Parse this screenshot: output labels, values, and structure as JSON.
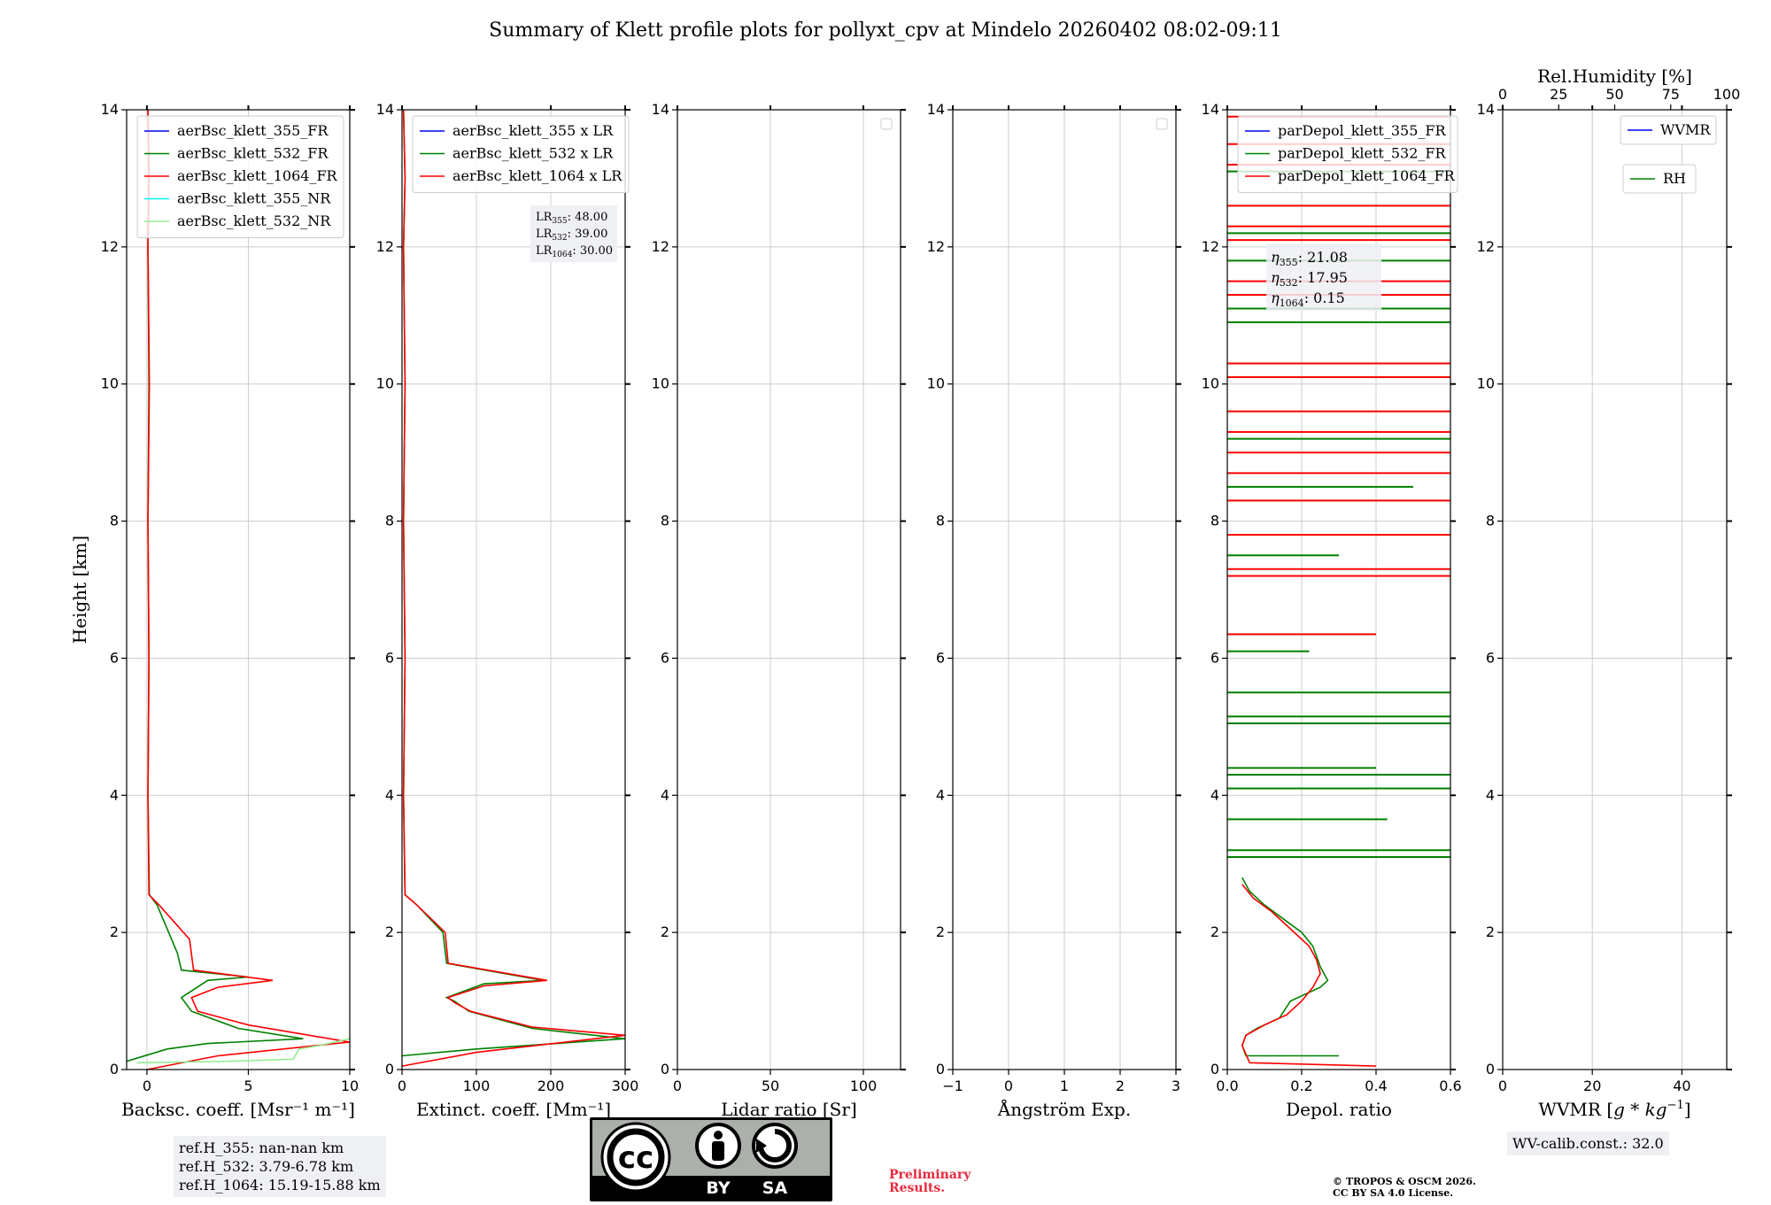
{
  "title": "Summary of Klett profile plots for pollyxt_cpv at Mindelo 20260402 08:02-09:11",
  "colors": {
    "b355": "#0000ff",
    "g532": "#008000",
    "r1064": "#ff0000",
    "c355nr": "#00ffff",
    "lg532nr": "#90ee90",
    "grid": "#cccccc"
  },
  "chart_data": [
    {
      "type": "line",
      "panel": "backscatter",
      "xlabel": "Backsc. coeff. [Msr⁻¹ m⁻¹]",
      "ylabel": "Height [km]",
      "xlim": [
        -1,
        10
      ],
      "ylim": [
        0,
        14
      ],
      "xticks": [
        "0",
        "5",
        "10"
      ],
      "xtick_values": [
        0,
        5,
        10
      ],
      "yticks": [
        "0",
        "2",
        "4",
        "6",
        "8",
        "10",
        "12",
        "14"
      ],
      "legend": [
        "aerBsc_klett_355_FR",
        "aerBsc_klett_532_FR",
        "aerBsc_klett_1064_FR",
        "aerBsc_klett_355_NR",
        "aerBsc_klett_532_NR"
      ],
      "series": [
        {
          "name": "aerBsc_klett_532_FR",
          "color": "g532",
          "x": [
            -1,
            1.0,
            3.0,
            7.7,
            4.5,
            2.2,
            1.7,
            3.0,
            5.0,
            1.7,
            1.5,
            0.5,
            0.12,
            0.05,
            0.1,
            0.05,
            0.1,
            0.05,
            0.1,
            0.05
          ],
          "y": [
            0.12,
            0.3,
            0.38,
            0.45,
            0.6,
            0.85,
            1.05,
            1.3,
            1.35,
            1.45,
            1.7,
            2.4,
            2.55,
            4,
            6,
            8,
            10,
            12,
            13,
            14
          ]
        },
        {
          "name": "aerBsc_klett_1064_FR",
          "color": "r1064",
          "x": [
            0.0,
            3.5,
            10.0,
            8.0,
            5.0,
            2.5,
            2.2,
            3.5,
            6.2,
            2.3,
            2.1,
            0.6,
            0.1,
            0.05,
            0.1,
            0.05,
            0.12,
            0.05,
            0.1,
            0.05
          ],
          "y": [
            0.0,
            0.2,
            0.4,
            0.5,
            0.65,
            0.85,
            1.05,
            1.2,
            1.3,
            1.45,
            1.9,
            2.4,
            2.55,
            4,
            6,
            8,
            10,
            12,
            13,
            14
          ]
        },
        {
          "name": "aerBsc_klett_532_NR",
          "color": "lg532nr",
          "x": [
            -0.5,
            4.0,
            7.2,
            7.5,
            8.5,
            10.0
          ],
          "y": [
            0.1,
            0.12,
            0.15,
            0.3,
            0.35,
            0.45
          ]
        }
      ]
    },
    {
      "type": "line",
      "panel": "extinction",
      "xlabel": "Extinct. coeff. [Mm⁻¹]",
      "xlim": [
        0,
        300
      ],
      "ylim": [
        0,
        14
      ],
      "xticks": [
        "0",
        "100",
        "200",
        "300"
      ],
      "xtick_values": [
        0,
        100,
        200,
        300
      ],
      "yticks": [
        "0",
        "2",
        "4",
        "6",
        "8",
        "10",
        "12",
        "14"
      ],
      "legend": [
        "aerBsc_klett_355 x LR",
        "aerBsc_klett_532 x LR",
        "aerBsc_klett_1064 x LR"
      ],
      "lidar_ratio_lines": [
        "LR$_{355}$: 48.00",
        "LR$_{532}$: 39.00",
        "LR$_{1064}$: 30.00"
      ],
      "lidar_ratio_labels": [
        {
          "base": "LR",
          "sub": "355",
          "value": ": 48.00"
        },
        {
          "base": "LR",
          "sub": "532",
          "value": ": 39.00"
        },
        {
          "base": "LR",
          "sub": "1064",
          "value": ": 30.00"
        }
      ],
      "series": [
        {
          "name": "aerBsc_klett_532 x LR",
          "color": "g532",
          "x": [
            0,
            100,
            300,
            175,
            90,
            70,
            60,
            110,
            190,
            60,
            55,
            20,
            4,
            2,
            4,
            2,
            4,
            2,
            4,
            2
          ],
          "y": [
            0.2,
            0.3,
            0.45,
            0.6,
            0.85,
            1.0,
            1.05,
            1.25,
            1.3,
            1.55,
            2.0,
            2.4,
            2.55,
            4,
            6,
            8,
            10,
            12,
            13,
            14
          ]
        },
        {
          "name": "aerBsc_klett_1064 x LR",
          "color": "r1064",
          "x": [
            0,
            100,
            300,
            175,
            92,
            70,
            62,
            110,
            195,
            62,
            58,
            20,
            4,
            2,
            4,
            2,
            4,
            2,
            4,
            2
          ],
          "y": [
            0.05,
            0.25,
            0.5,
            0.62,
            0.85,
            0.98,
            1.05,
            1.22,
            1.3,
            1.55,
            2.0,
            2.4,
            2.55,
            4,
            6,
            8,
            10,
            12,
            13,
            14
          ]
        }
      ]
    },
    {
      "type": "line",
      "panel": "lidar-ratio",
      "xlabel": "Lidar ratio [Sr]",
      "xlim": [
        0,
        120
      ],
      "ylim": [
        0,
        14
      ],
      "xticks": [
        "0",
        "50",
        "100"
      ],
      "xtick_values": [
        0,
        50,
        100
      ],
      "yticks": [
        "0",
        "2",
        "4",
        "6",
        "8",
        "10",
        "12",
        "14"
      ],
      "series": []
    },
    {
      "type": "line",
      "panel": "angstrom",
      "xlabel": "Ångström Exp.",
      "xlim": [
        -1,
        3
      ],
      "ylim": [
        0,
        14
      ],
      "xticks": [
        "−1",
        "0",
        "1",
        "2",
        "3"
      ],
      "xtick_values": [
        -1,
        0,
        1,
        2,
        3
      ],
      "yticks": [
        "0",
        "2",
        "4",
        "6",
        "8",
        "10",
        "12",
        "14"
      ],
      "series": []
    },
    {
      "type": "line",
      "panel": "depol",
      "xlabel": "Depol. ratio",
      "xlim": [
        0,
        0.6
      ],
      "ylim": [
        0,
        14
      ],
      "xticks": [
        "0.0",
        "0.2",
        "0.4",
        "0.6"
      ],
      "xtick_values": [
        0,
        0.2,
        0.4,
        0.6
      ],
      "yticks": [
        "0",
        "2",
        "4",
        "6",
        "8",
        "10",
        "12",
        "14"
      ],
      "legend": [
        "parDepol_klett_355_FR",
        "parDepol_klett_532_FR",
        "parDepol_klett_1064_FR"
      ],
      "eta_lines": [
        "$\\eta_{355}$: 21.08",
        "$\\eta_{532}$: 17.95",
        "$\\eta_{1064}$: 0.15"
      ],
      "eta_labels": [
        {
          "base": "η",
          "sub": "355",
          "value": ": 21.08"
        },
        {
          "base": "η",
          "sub": "532",
          "value": ": 17.95"
        },
        {
          "base": "η",
          "sub": "1064",
          "value": ": 0.15"
        }
      ],
      "series": [
        {
          "name": "parDepol_klett_532_FR",
          "color": "g532",
          "x": [
            0.3,
            0.05,
            0.04,
            0.05,
            0.08,
            0.14,
            0.17,
            0.21,
            0.25,
            0.27,
            0.25,
            0.23,
            0.2,
            0.15,
            0.1,
            0.06,
            0.04
          ],
          "y": [
            0.2,
            0.2,
            0.35,
            0.5,
            0.6,
            0.75,
            1.0,
            1.1,
            1.2,
            1.3,
            1.5,
            1.8,
            2.0,
            2.2,
            2.4,
            2.6,
            2.8
          ]
        },
        {
          "name": "parDepol_klett_1064_FR",
          "color": "r1064",
          "x": [
            0.4,
            0.06,
            0.04,
            0.05,
            0.1,
            0.16,
            0.2,
            0.23,
            0.25,
            0.24,
            0.22,
            0.18,
            0.12,
            0.07,
            0.04
          ],
          "y": [
            0.05,
            0.1,
            0.35,
            0.5,
            0.65,
            0.8,
            1.0,
            1.2,
            1.4,
            1.6,
            1.8,
            2.0,
            2.3,
            2.5,
            2.7
          ]
        }
      ],
      "noise_spikes_532": [
        [
          0.6,
          3.1
        ],
        [
          0.6,
          3.2
        ],
        [
          0.43,
          3.65
        ],
        [
          0.6,
          4.1
        ],
        [
          0.6,
          4.3
        ],
        [
          0.4,
          4.4
        ],
        [
          0.6,
          5.05
        ],
        [
          0.6,
          5.15
        ],
        [
          0.6,
          5.5
        ],
        [
          0.22,
          6.1
        ],
        [
          0.3,
          7.5
        ],
        [
          0.5,
          8.5
        ],
        [
          0.6,
          9.2
        ],
        [
          0.6,
          10.9
        ],
        [
          0.6,
          11.1
        ],
        [
          0.6,
          11.8
        ],
        [
          0.6,
          12.2
        ],
        [
          0.6,
          13.1
        ]
      ],
      "noise_spikes_1064": [
        [
          0.4,
          6.35
        ],
        [
          0.6,
          7.2
        ],
        [
          0.6,
          7.3
        ],
        [
          0.6,
          7.8
        ],
        [
          0.6,
          8.3
        ],
        [
          0.6,
          8.7
        ],
        [
          0.6,
          9.0
        ],
        [
          0.6,
          9.3
        ],
        [
          0.6,
          9.6
        ],
        [
          0.6,
          10.1
        ],
        [
          0.6,
          10.3
        ],
        [
          0.6,
          11.3
        ],
        [
          0.6,
          11.5
        ],
        [
          0.6,
          12.1
        ],
        [
          0.6,
          12.3
        ],
        [
          0.6,
          12.6
        ],
        [
          0.6,
          13.2
        ],
        [
          0.6,
          13.5
        ],
        [
          0.6,
          13.9
        ]
      ]
    },
    {
      "type": "line",
      "panel": "wvmr",
      "xlabel": "WVMR [g*kg⁻¹]",
      "xlabel_parts": {
        "main": "WVMR [",
        "italic": "g * kg",
        "sup": "−1",
        "end": "]"
      },
      "xlim": [
        0,
        50
      ],
      "ylim": [
        0,
        14
      ],
      "xticks": [
        "0",
        "20",
        "40"
      ],
      "xtick_values": [
        0,
        20,
        40
      ],
      "top_xlabel": "Rel.Humidity [%]",
      "top_xlim": [
        0,
        100
      ],
      "top_xticks": [
        "0",
        "25",
        "50",
        "75",
        "100"
      ],
      "top_xtick_values": [
        0,
        25,
        50,
        75,
        100
      ],
      "yticks": [
        "0",
        "2",
        "4",
        "6",
        "8",
        "10",
        "12",
        "14"
      ],
      "legend": [
        "WVMR",
        "RH"
      ],
      "series": []
    }
  ],
  "annotations": {
    "refh": [
      "ref.H_355: nan-nan km",
      "ref.H_532: 3.79-6.78 km",
      "ref.H_1064: 15.19-15.88 km"
    ],
    "wv_calib": "WV-calib.const.: 32.0",
    "license_by": "BY",
    "license_sa": "SA",
    "license_cc": "cc",
    "preliminary": [
      "Preliminary",
      "Results."
    ],
    "copyright": [
      "© TROPOS & OSCM 2026.",
      "CC BY SA 4.0 License."
    ]
  }
}
